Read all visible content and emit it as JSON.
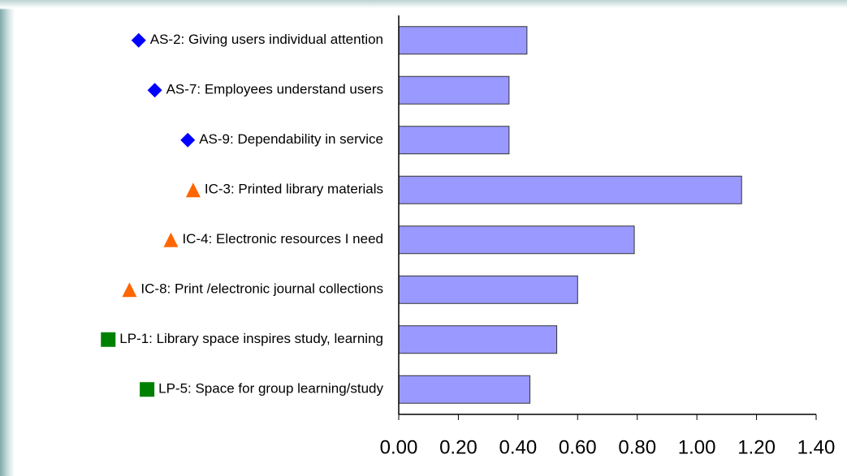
{
  "chart_data": {
    "type": "bar",
    "orientation": "horizontal",
    "categories": [
      "AS-2: Giving users individual attention",
      "AS-7: Employees understand users",
      "AS-9: Dependability in service",
      "IC-3: Printed library materials",
      "IC-4: Electronic resources I need",
      "IC-8: Print /electronic journal collections",
      "LP-1: Library space inspires study, learning",
      "LP-5: Space for group learning/study"
    ],
    "values": [
      0.43,
      0.37,
      0.37,
      1.15,
      0.79,
      0.6,
      0.53,
      0.44
    ],
    "color": "#9999ff",
    "markers": [
      {
        "shape": "diamond",
        "color": "#0000ff"
      },
      {
        "shape": "diamond",
        "color": "#0000ff"
      },
      {
        "shape": "diamond",
        "color": "#0000ff"
      },
      {
        "shape": "triangle",
        "color": "#ff6600"
      },
      {
        "shape": "triangle",
        "color": "#ff6600"
      },
      {
        "shape": "triangle",
        "color": "#ff6600"
      },
      {
        "shape": "square",
        "color": "#008000"
      },
      {
        "shape": "square",
        "color": "#008000"
      }
    ],
    "xlim": [
      0,
      1.4
    ],
    "xticks": [
      {
        "value": 0,
        "label": "0.00"
      },
      {
        "value": 0.2,
        "label": "0.20"
      },
      {
        "value": 0.4,
        "label": "0.40"
      },
      {
        "value": 0.6,
        "label": "0.60"
      },
      {
        "value": 0.8,
        "label": "0.80"
      },
      {
        "value": 1.0,
        "label": "1.00"
      },
      {
        "value": 1.2,
        "label": "1.20"
      },
      {
        "value": 1.4,
        "label": "1.40"
      }
    ],
    "grid": false
  }
}
